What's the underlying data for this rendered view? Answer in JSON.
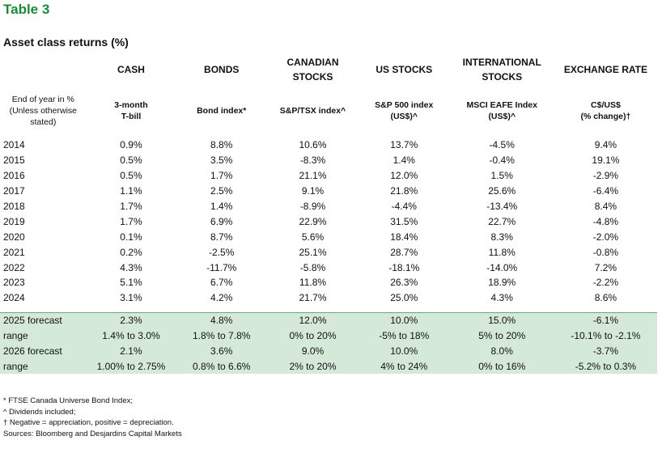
{
  "title": "Table 3",
  "subtitle": "Asset class returns (%)",
  "columns": [
    {
      "header": "CASH",
      "sub": "3-month\nT-bill"
    },
    {
      "header": "BONDS",
      "sub": "Bond index*"
    },
    {
      "header": "CANADIAN\nSTOCKS",
      "sub": "S&P/TSX index^"
    },
    {
      "header": "US STOCKS",
      "sub": "S&P 500 index\n(US$)^"
    },
    {
      "header": "INTERNATIONAL\nSTOCKS",
      "sub": "MSCI EAFE Index\n(US$)^"
    },
    {
      "header": "EXCHANGE RATE",
      "sub": "C$/US$\n(% change)†"
    }
  ],
  "row_label_header": "End of year in %\n(Unless otherwise\nstated)",
  "rows": [
    [
      "2014",
      "0.9%",
      "8.8%",
      "10.6%",
      "13.7%",
      "-4.5%",
      "9.4%"
    ],
    [
      "2015",
      "0.5%",
      "3.5%",
      "-8.3%",
      "1.4%",
      "-0.4%",
      "19.1%"
    ],
    [
      "2016",
      "0.5%",
      "1.7%",
      "21.1%",
      "12.0%",
      "1.5%",
      "-2.9%"
    ],
    [
      "2017",
      "1.1%",
      "2.5%",
      "9.1%",
      "21.8%",
      "25.6%",
      "-6.4%"
    ],
    [
      "2018",
      "1.7%",
      "1.4%",
      "-8.9%",
      "-4.4%",
      "-13.4%",
      "8.4%"
    ],
    [
      "2019",
      "1.7%",
      "6.9%",
      "22.9%",
      "31.5%",
      "22.7%",
      "-4.8%"
    ],
    [
      "2020",
      "0.1%",
      "8.7%",
      "5.6%",
      "18.4%",
      "8.3%",
      "-2.0%"
    ],
    [
      "2021",
      "0.2%",
      "-2.5%",
      "25.1%",
      "28.7%",
      "11.8%",
      "-0.8%"
    ],
    [
      "2022",
      "4.3%",
      "-11.7%",
      "-5.8%",
      "-18.1%",
      "-14.0%",
      "7.2%"
    ],
    [
      "2023",
      "5.1%",
      "6.7%",
      "11.8%",
      "26.3%",
      "18.9%",
      "-2.2%"
    ],
    [
      "2024",
      "3.1%",
      "4.2%",
      "21.7%",
      "25.0%",
      "4.3%",
      "8.6%"
    ]
  ],
  "forecasts": [
    [
      "2025 forecast",
      "2.3%",
      "4.8%",
      "12.0%",
      "10.0%",
      "15.0%",
      "-6.1%"
    ],
    [
      "range",
      "1.4% to 3.0%",
      "1.8% to 7.8%",
      "0% to 20%",
      "-5% to 18%",
      "5% to 20%",
      "-10.1% to -2.1%"
    ],
    [
      "2026 forecast",
      "2.1%",
      "3.6%",
      "9.0%",
      "10.0%",
      "8.0%",
      "-3.7%"
    ],
    [
      "range",
      "1.00% to 2.75%",
      "0.8% to 6.6%",
      "2% to 20%",
      "4% to 24%",
      "0% to 16%",
      "-5.2% to 0.3%"
    ]
  ],
  "notes": [
    "* FTSE Canada Universe Bond Index;",
    "^ Dividends included;",
    "† Negative = appreciation, positive = depreciation.",
    "Sources: Bloomberg and Desjardins Capital Markets"
  ],
  "colors": {
    "title": "#1a8a3a",
    "forecast_band": "#d5e9d8"
  }
}
